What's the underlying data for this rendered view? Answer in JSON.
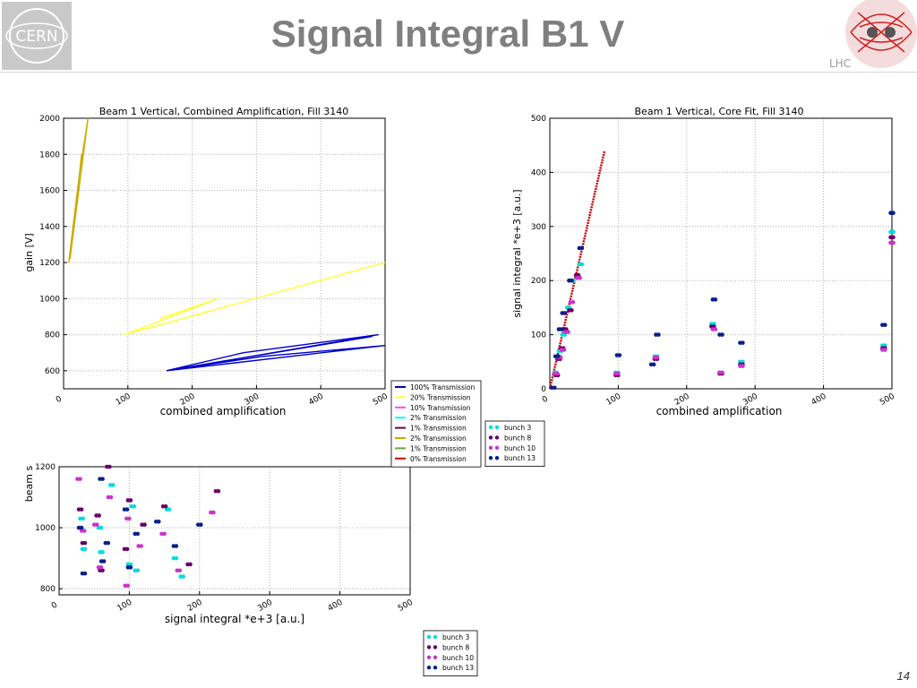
{
  "slide": {
    "title": "Signal Integral B1 V",
    "page_number": "14",
    "logo_left": "CERN",
    "logo_right": "LHC"
  },
  "colors": {
    "title": "#7f7f7f",
    "axis": "#000000",
    "grid": "#b0b0b0"
  },
  "chart_data": [
    {
      "id": "gain",
      "type": "line",
      "title": "Beam 1 Vertical, Combined Amplification, Fill 3140",
      "xlabel": "combined amplification",
      "ylabel": "gain [V]",
      "xlim": [
        0,
        500
      ],
      "ylim": [
        500,
        2000
      ],
      "xticks": [
        0,
        100,
        200,
        300,
        400,
        500
      ],
      "yticks": [
        600,
        800,
        1000,
        1200,
        1400,
        1600,
        1800,
        2000
      ],
      "grid": true,
      "legend_position": "bottom-right-outside",
      "series": [
        {
          "name": "100% Transmission",
          "color": "#0000cc",
          "x": [
            160,
            280,
            490,
            160,
            310,
            500,
            160,
            260,
            480
          ],
          "y": [
            600,
            700,
            800,
            600,
            680,
            740,
            600,
            660,
            790
          ]
        },
        {
          "name": "20% Transmission",
          "color": "#ffff33",
          "x": [
            95,
            500,
            95,
            240,
            150
          ],
          "y": [
            800,
            1200,
            800,
            1000,
            890
          ]
        },
        {
          "name": "10% Transmission",
          "color": "#ff44ff",
          "x": [],
          "y": []
        },
        {
          "name": "2% Transmission",
          "color": "#00ffff",
          "x": [],
          "y": []
        },
        {
          "name": "1% Transmission",
          "color": "#660066",
          "x": [],
          "y": []
        },
        {
          "name": "2% Transmission",
          "color": "#ccaa00",
          "x": [
            8,
            25,
            38,
            10,
            28
          ],
          "y": [
            1200,
            1700,
            2000,
            1220,
            1800
          ]
        },
        {
          "name": "1% Transmission",
          "color": "#66aa33",
          "x": [],
          "y": []
        },
        {
          "name": "0% Transmission",
          "color": "#cc0000",
          "x": [],
          "y": []
        }
      ]
    },
    {
      "id": "core",
      "type": "scatter",
      "title": "Beam 1 Vertical, Core Fit, Fill 3140",
      "xlabel": "combined amplification",
      "ylabel": "signal integral *e+3 [a.u.]",
      "xlim": [
        0,
        500
      ],
      "ylim": [
        0,
        500
      ],
      "xticks": [
        0,
        100,
        200,
        300,
        400,
        500
      ],
      "yticks": [
        0,
        100,
        200,
        300,
        400,
        500
      ],
      "grid": true,
      "legend_position": "bottom-right-outside",
      "fit_line": {
        "color": "#cc0000",
        "x": [
          0,
          80
        ],
        "y": [
          0,
          440
        ]
      },
      "series": [
        {
          "name": "bunch 3",
          "color": "#00dddd",
          "x": [
            8,
            12,
            15,
            20,
            27,
            33,
            45,
            98,
            155,
            238,
            250,
            280,
            488,
            500
          ],
          "y": [
            30,
            60,
            70,
            100,
            150,
            200,
            230,
            30,
            60,
            120,
            30,
            50,
            80,
            290
          ]
        },
        {
          "name": "bunch 8",
          "color": "#660066",
          "x": [
            10,
            13,
            18,
            22,
            30,
            40,
            98,
            155,
            238,
            250,
            280,
            488,
            500
          ],
          "y": [
            25,
            55,
            75,
            110,
            145,
            210,
            25,
            55,
            115,
            28,
            45,
            75,
            280
          ]
        },
        {
          "name": "bunch 10",
          "color": "#cc33cc",
          "x": [
            9,
            14,
            19,
            25,
            32,
            42,
            98,
            155,
            240,
            250,
            280,
            488,
            500
          ],
          "y": [
            28,
            58,
            72,
            105,
            160,
            205,
            28,
            58,
            110,
            30,
            42,
            72,
            270
          ]
        },
        {
          "name": "bunch 13",
          "color": "#0a1e8c",
          "x": [
            5,
            10,
            15,
            20,
            30,
            45,
            100,
            150,
            157,
            240,
            250,
            280,
            488,
            500
          ],
          "y": [
            2,
            60,
            110,
            140,
            200,
            260,
            62,
            45,
            100,
            165,
            100,
            85,
            118,
            325
          ]
        }
      ]
    },
    {
      "id": "beam",
      "type": "scatter",
      "title": "",
      "xlabel": "signal integral *e+3 [a.u.]",
      "ylabel": "beam s",
      "xlim": [
        0,
        500
      ],
      "ylim": [
        780,
        1200
      ],
      "xticks": [
        0,
        100,
        200,
        300,
        400,
        500
      ],
      "yticks": [
        800,
        1000,
        1200
      ],
      "grid": true,
      "legend_position": "bottom-right-outside",
      "series": [
        {
          "name": "bunch 3",
          "color": "#00dddd",
          "x": [
            32,
            58,
            75,
            105,
            110,
            155,
            165,
            175,
            35,
            60,
            100
          ],
          "y": [
            1030,
            1000,
            1140,
            1070,
            860,
            1060,
            900,
            840,
            930,
            920,
            880
          ]
        },
        {
          "name": "bunch 8",
          "color": "#660066",
          "x": [
            30,
            55,
            70,
            100,
            120,
            150,
            185,
            225,
            35,
            60,
            95
          ],
          "y": [
            1060,
            1040,
            1200,
            1090,
            1010,
            1070,
            880,
            1120,
            950,
            860,
            930
          ]
        },
        {
          "name": "bunch 10",
          "color": "#cc33cc",
          "x": [
            28,
            52,
            72,
            98,
            115,
            148,
            170,
            218,
            34,
            58,
            96
          ],
          "y": [
            1160,
            1010,
            1100,
            1030,
            940,
            980,
            860,
            1050,
            990,
            870,
            810
          ]
        },
        {
          "name": "bunch 13",
          "color": "#0a1e8c",
          "x": [
            30,
            60,
            68,
            95,
            110,
            140,
            165,
            200,
            35,
            62,
            100
          ],
          "y": [
            1000,
            1160,
            950,
            1060,
            980,
            1020,
            940,
            1010,
            850,
            890,
            870
          ]
        }
      ]
    }
  ],
  "legends": {
    "gain_legend": [
      "100% Transmission",
      "20% Transmission",
      "10% Transmission",
      "2% Transmission",
      "1% Transmission",
      "2% Transmission",
      "1% Transmission",
      "0% Transmission"
    ],
    "core_legend": [
      "bunch 3",
      "bunch 8",
      "bunch 10",
      "bunch 13"
    ],
    "beam_legend": [
      "bunch 3",
      "bunch 8",
      "bunch 10",
      "bunch 13"
    ]
  }
}
